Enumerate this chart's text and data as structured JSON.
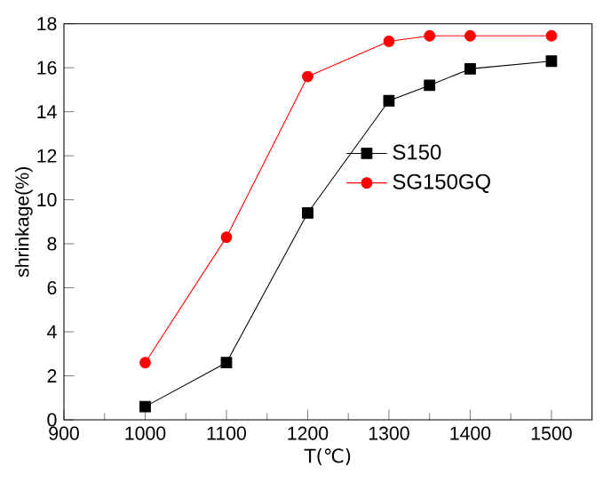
{
  "chart_data": {
    "type": "line",
    "xlabel": "T(℃)",
    "ylabel": "shrinkage(%)",
    "x": [
      1000,
      1100,
      1200,
      1300,
      1350,
      1400,
      1500
    ],
    "series": [
      {
        "name": "S150",
        "color": "#000000",
        "marker": "square",
        "values": [
          0.6,
          2.6,
          9.4,
          14.5,
          15.2,
          15.95,
          16.3
        ]
      },
      {
        "name": "SG150GQ",
        "color": "#ff0000",
        "marker": "circle",
        "values": [
          2.6,
          8.3,
          15.6,
          17.2,
          17.45,
          17.45,
          17.45
        ]
      }
    ],
    "xlim": [
      900,
      1550
    ],
    "xticks": [
      900,
      1000,
      1100,
      1200,
      1300,
      1400,
      1500
    ],
    "ylim": [
      0,
      18
    ],
    "yticks": [
      0,
      2,
      4,
      6,
      8,
      10,
      12,
      14,
      16,
      18
    ],
    "legend": "right",
    "line_style": "solid",
    "grid": false
  }
}
